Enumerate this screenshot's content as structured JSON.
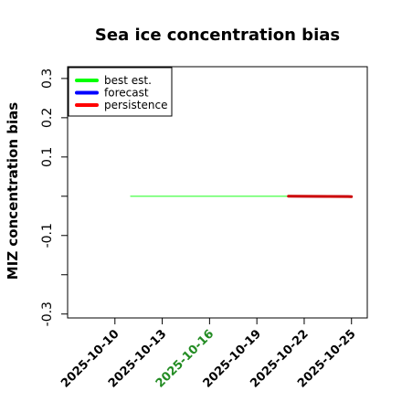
{
  "chart_data": {
    "type": "line",
    "title": "Sea ice concentration bias",
    "xlabel": "",
    "ylabel": "MIZ concentration bias",
    "xlim": [
      "2025-10-07",
      "2025-10-26"
    ],
    "ylim": [
      -0.31,
      0.33
    ],
    "y_ticks": [
      -0.3,
      -0.2,
      -0.1,
      0.0,
      0.1,
      0.2,
      0.3
    ],
    "y_tick_labels": [
      "-0.3",
      "",
      "-0.1",
      "",
      "0.1",
      "0.2",
      "0.3"
    ],
    "x_ticks": [
      "2025-10-10",
      "2025-10-13",
      "2025-10-16",
      "2025-10-19",
      "2025-10-22",
      "2025-10-25"
    ],
    "x_tick_labels": [
      "2025-10-10",
      "2025-10-13",
      "2025-10-16",
      "2025-10-19",
      "2025-10-22",
      "2025-10-25"
    ],
    "x_tick_colors": [
      "#000000",
      "#000000",
      "#228b22",
      "#000000",
      "#000000",
      "#000000"
    ],
    "legend_position": "top-left",
    "series": [
      {
        "name": "best est.",
        "color": "#66ff66",
        "legend_color": "#00ff00",
        "x": [
          "2025-10-11",
          "2025-10-21"
        ],
        "y": [
          0.0,
          0.0
        ]
      },
      {
        "name": "forecast",
        "color": "#0000ff",
        "legend_color": "#0000ff",
        "x": [
          "2025-10-21",
          "2025-10-25"
        ],
        "y": [
          0.0,
          -0.001
        ]
      },
      {
        "name": "persistence",
        "color": "#cc0000",
        "legend_color": "#ff0000",
        "x": [
          "2025-10-21",
          "2025-10-25"
        ],
        "y": [
          0.0,
          -0.001
        ]
      }
    ]
  }
}
